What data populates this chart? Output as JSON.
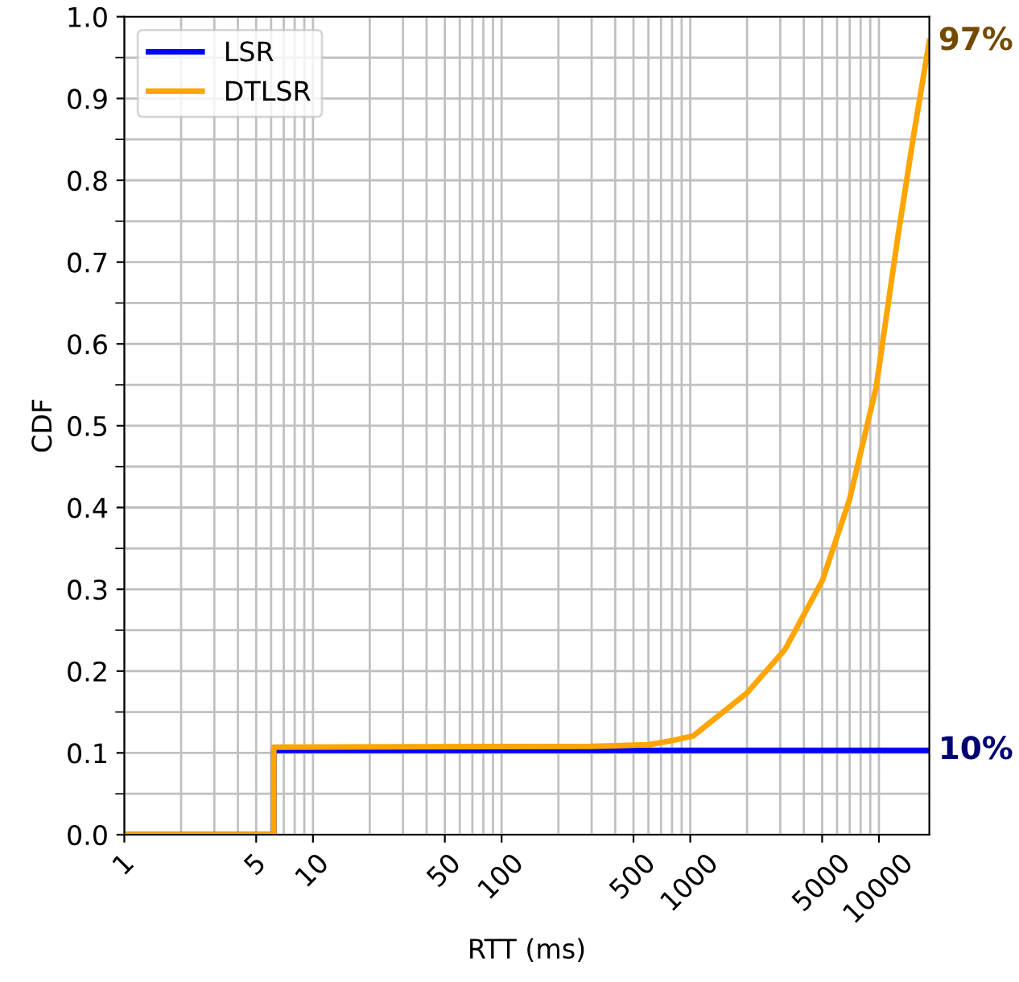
{
  "chart_data": {
    "type": "line",
    "xlabel": "RTT (ms)",
    "ylabel": "CDF",
    "log": "x",
    "grid": true,
    "legend": "top left",
    "line_style": "solid",
    "marker": "none",
    "xlim": [
      1,
      18500
    ],
    "ylim": [
      0,
      1
    ],
    "xticks": [
      1,
      {
        "value": 2,
        "label": null
      },
      {
        "value": 3,
        "label": null
      },
      {
        "value": 4,
        "label": null
      },
      5,
      {
        "value": 6,
        "label": null
      },
      {
        "value": 7,
        "label": null
      },
      {
        "value": 8,
        "label": null
      },
      {
        "value": 9,
        "label": null
      },
      10,
      {
        "value": 20,
        "label": null
      },
      {
        "value": 30,
        "label": null
      },
      {
        "value": 40,
        "label": null
      },
      50,
      {
        "value": 60,
        "label": null
      },
      {
        "value": 70,
        "label": null
      },
      {
        "value": 80,
        "label": null
      },
      {
        "value": 90,
        "label": null
      },
      100,
      {
        "value": 200,
        "label": null
      },
      {
        "value": 300,
        "label": null
      },
      {
        "value": 400,
        "label": null
      },
      500,
      {
        "value": 600,
        "label": null
      },
      {
        "value": 700,
        "label": null
      },
      {
        "value": 800,
        "label": null
      },
      {
        "value": 900,
        "label": null
      },
      1000,
      {
        "value": 2000,
        "label": null
      },
      {
        "value": 3000,
        "label": null
      },
      {
        "value": 4000,
        "label": null
      },
      5000,
      {
        "value": 6000,
        "label": null
      },
      {
        "value": 7000,
        "label": null
      },
      {
        "value": 8000,
        "label": null
      },
      {
        "value": 9000,
        "label": null
      },
      10000
    ],
    "yticks": [
      {
        "value": 0,
        "label": "0.0"
      },
      {
        "value": 0.05,
        "label": null
      },
      0.1,
      {
        "value": 0.15,
        "label": null
      },
      0.2,
      {
        "value": 0.25,
        "label": null
      },
      0.3,
      {
        "value": 0.35,
        "label": null
      },
      0.4,
      {
        "value": 0.45,
        "label": null
      },
      0.5,
      {
        "value": 0.55,
        "label": null
      },
      0.6,
      {
        "value": 0.65,
        "label": null
      },
      0.7,
      {
        "value": 0.75,
        "label": null
      },
      0.8,
      {
        "value": 0.85,
        "label": null
      },
      0.9,
      {
        "value": 0.95,
        "label": null
      },
      {
        "value": 1,
        "label": "1.0"
      }
    ],
    "series": [
      {
        "name": "LSR",
        "color": "#0000ff",
        "x": [
          1,
          6.2,
          6.2,
          18500
        ],
        "values": [
          0,
          0,
          0.103,
          0.103
        ]
      },
      {
        "name": "DTLSR",
        "color": "#ffa500",
        "x": [
          1,
          6.2,
          6.2,
          300,
          600,
          800,
          1040,
          1990,
          3170,
          5020,
          6970,
          9670,
          12600,
          15300,
          18500
        ],
        "values": [
          0,
          0,
          0.107,
          0.108,
          0.11,
          0.115,
          0.121,
          0.173,
          0.226,
          0.311,
          0.409,
          0.547,
          0.731,
          0.856,
          0.97
        ]
      }
    ],
    "annotations": [
      {
        "text": "97%",
        "x": 18500,
        "y": 0.97
      },
      {
        "text": "10%",
        "x": 18500,
        "y": 0.103
      }
    ]
  }
}
